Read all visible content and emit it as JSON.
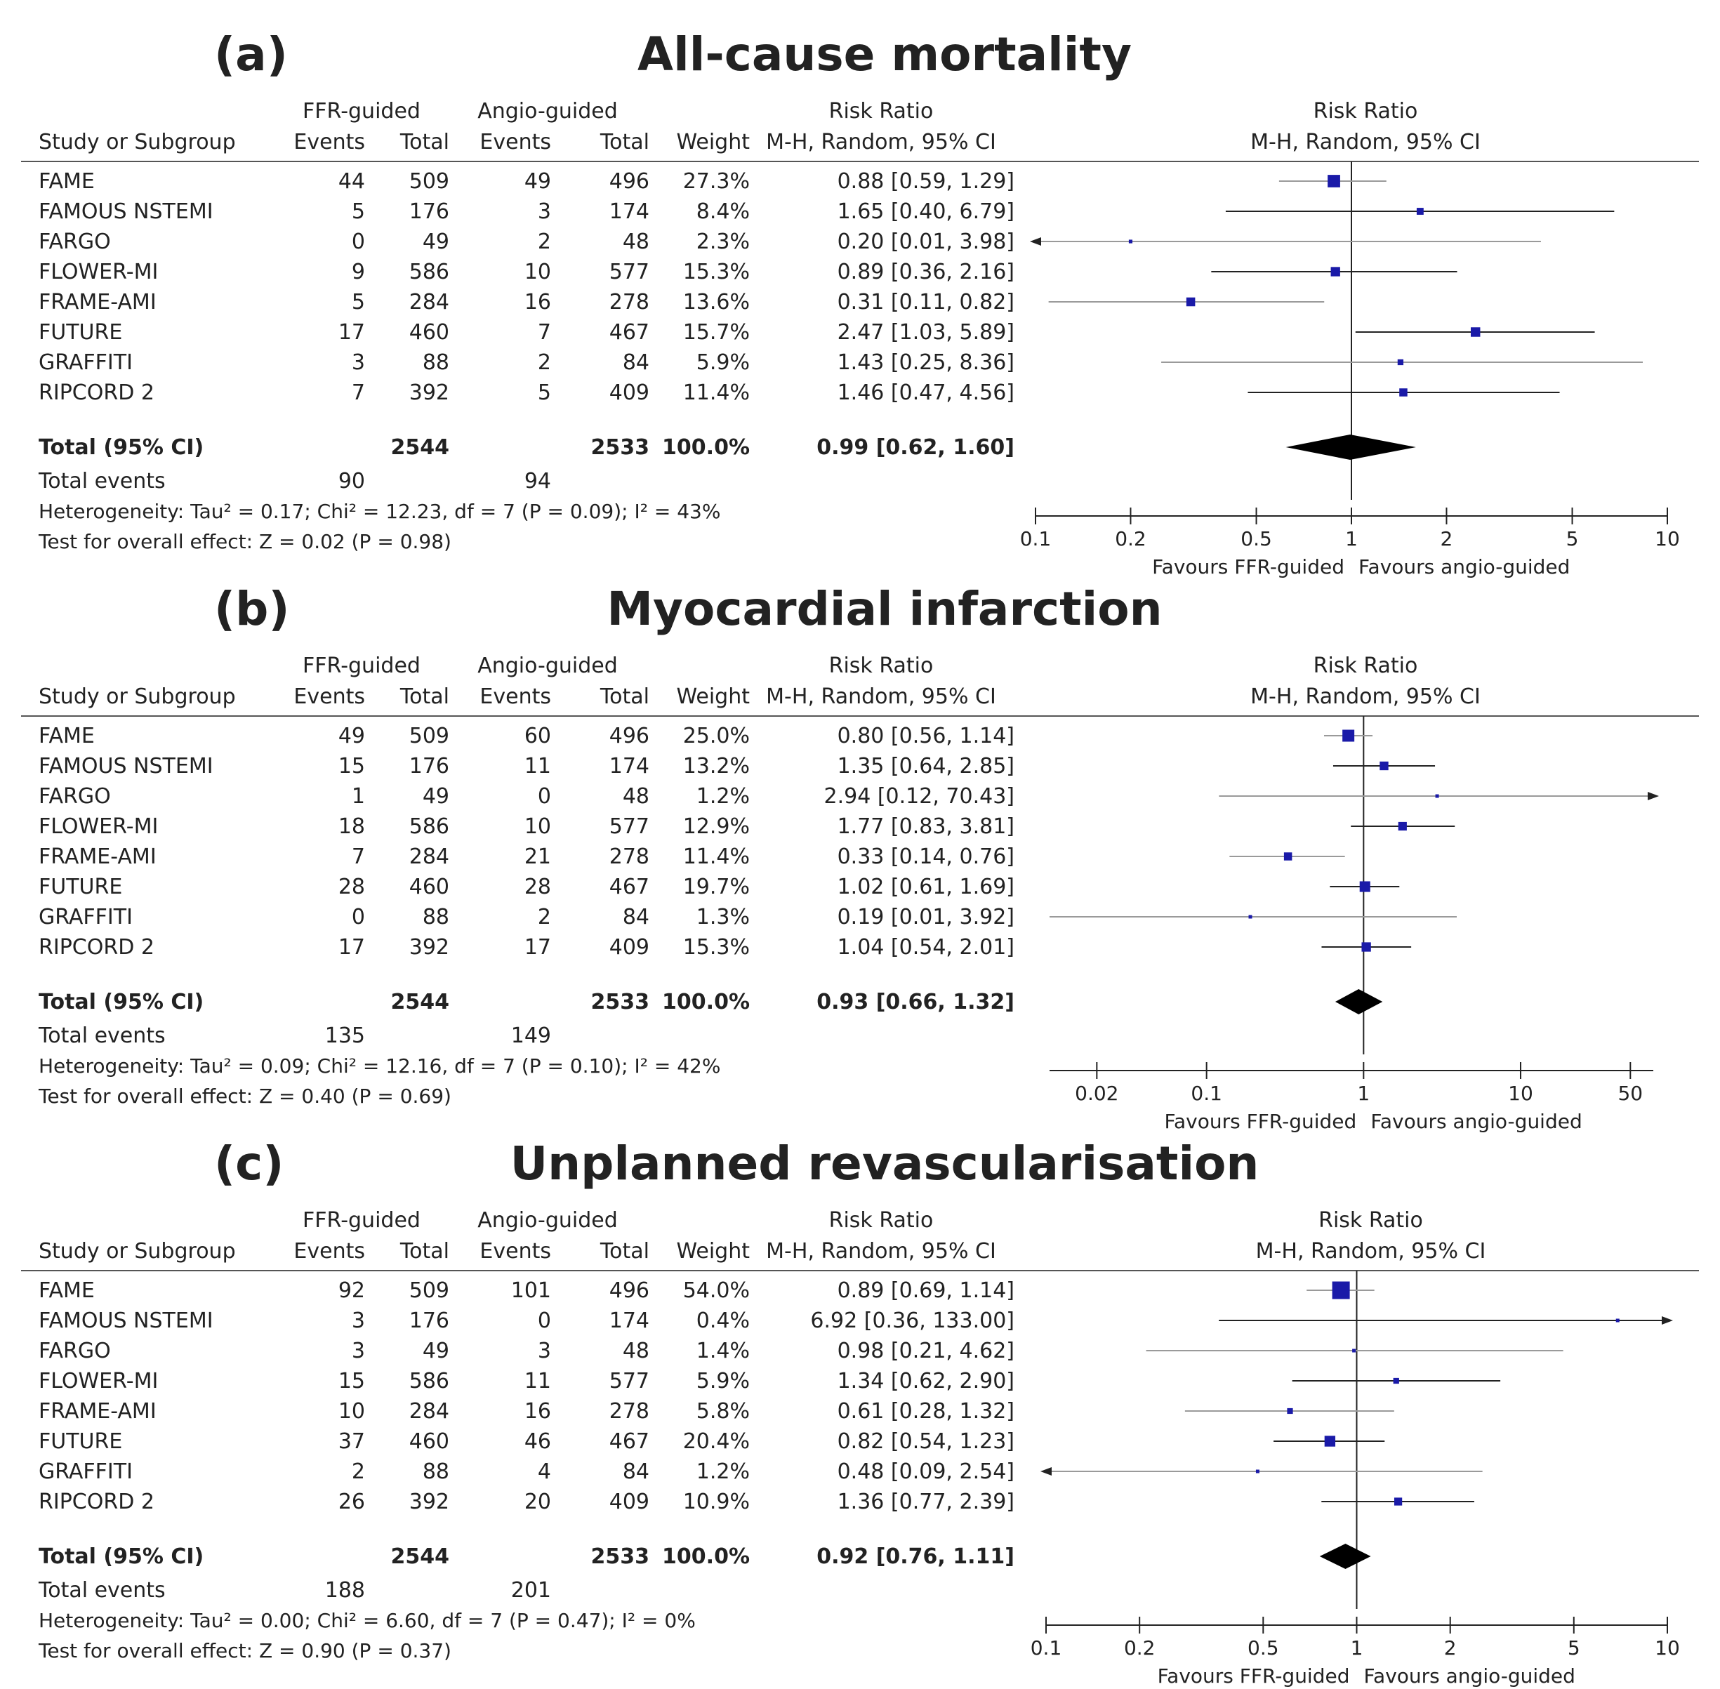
{
  "colors": {
    "text": "#222222",
    "marker": "#1a1aa8",
    "line_dark": "#222222",
    "line_light": "#9a9a9a",
    "rule": "#555555"
  },
  "headers": {
    "ffr_group": "FFR-guided",
    "angio_group": "Angio-guided",
    "study": "Study or Subgroup",
    "events": "Events",
    "total": "Total",
    "weight": "Weight",
    "rr_title": "Risk Ratio",
    "rr_method": "M-H, Random, 95% CI"
  },
  "chart_data": [
    {
      "type": "forest",
      "panel": "(a)",
      "title": "All-cause mortality",
      "rows": [
        {
          "study": "FAME",
          "ffr_events": "44",
          "ffr_total": "509",
          "angio_events": "49",
          "angio_total": "496",
          "weight": "27.3%",
          "ci_text": "0.88 [0.59, 1.29]",
          "rr": 0.88,
          "lo": 0.59,
          "hi": 1.29,
          "w": 27.3
        },
        {
          "study": "FAMOUS NSTEMI",
          "ffr_events": "5",
          "ffr_total": "176",
          "angio_events": "3",
          "angio_total": "174",
          "weight": "8.4%",
          "ci_text": "1.65 [0.40, 6.79]",
          "rr": 1.65,
          "lo": 0.4,
          "hi": 6.79,
          "w": 8.4
        },
        {
          "study": "FARGO",
          "ffr_events": "0",
          "ffr_total": "49",
          "angio_events": "2",
          "angio_total": "48",
          "weight": "2.3%",
          "ci_text": "0.20 [0.01, 3.98]",
          "rr": 0.2,
          "lo": 0.01,
          "hi": 3.98,
          "w": 2.3
        },
        {
          "study": "FLOWER-MI",
          "ffr_events": "9",
          "ffr_total": "586",
          "angio_events": "10",
          "angio_total": "577",
          "weight": "15.3%",
          "ci_text": "0.89 [0.36, 2.16]",
          "rr": 0.89,
          "lo": 0.36,
          "hi": 2.16,
          "w": 15.3
        },
        {
          "study": "FRAME-AMI",
          "ffr_events": "5",
          "ffr_total": "284",
          "angio_events": "16",
          "angio_total": "278",
          "weight": "13.6%",
          "ci_text": "0.31 [0.11, 0.82]",
          "rr": 0.31,
          "lo": 0.11,
          "hi": 0.82,
          "w": 13.6
        },
        {
          "study": "FUTURE",
          "ffr_events": "17",
          "ffr_total": "460",
          "angio_events": "7",
          "angio_total": "467",
          "weight": "15.7%",
          "ci_text": "2.47 [1.03, 5.89]",
          "rr": 2.47,
          "lo": 1.03,
          "hi": 5.89,
          "w": 15.7
        },
        {
          "study": "GRAFFITI",
          "ffr_events": "3",
          "ffr_total": "88",
          "angio_events": "2",
          "angio_total": "84",
          "weight": "5.9%",
          "ci_text": "1.43 [0.25, 8.36]",
          "rr": 1.43,
          "lo": 0.25,
          "hi": 8.36,
          "w": 5.9
        },
        {
          "study": "RIPCORD 2",
          "ffr_events": "7",
          "ffr_total": "392",
          "angio_events": "5",
          "angio_total": "409",
          "weight": "11.4%",
          "ci_text": "1.46 [0.47, 4.56]",
          "rr": 1.46,
          "lo": 0.47,
          "hi": 4.56,
          "w": 11.4
        }
      ],
      "total": {
        "label": "Total (95% CI)",
        "ffr_total": "2544",
        "angio_total": "2533",
        "weight": "100.0%",
        "ci_text": "0.99 [0.62, 1.60]",
        "rr": 0.99,
        "lo": 0.62,
        "hi": 1.6
      },
      "events": {
        "label": "Total events",
        "ffr": "90",
        "angio": "94"
      },
      "heterogeneity": "Heterogeneity: Tau² = 0.17; Chi² = 12.23, df = 7 (P = 0.09); I² = 43%",
      "overall": "Test for overall effect: Z = 0.02 (P = 0.98)",
      "axis": {
        "scale": "log",
        "min": 0.1,
        "max": 10,
        "ticks": [
          0.1,
          0.2,
          0.5,
          1,
          2,
          5,
          10
        ],
        "tick_labels": [
          "0.1",
          "0.2",
          "0.5",
          "1",
          "2",
          "5",
          "10"
        ]
      },
      "favours_left": "Favours FFR-guided",
      "favours_right": "Favours angio-guided"
    },
    {
      "type": "forest",
      "panel": "(b)",
      "title": "Myocardial infarction",
      "rows": [
        {
          "study": "FAME",
          "ffr_events": "49",
          "ffr_total": "509",
          "angio_events": "60",
          "angio_total": "496",
          "weight": "25.0%",
          "ci_text": "0.80 [0.56, 1.14]",
          "rr": 0.8,
          "lo": 0.56,
          "hi": 1.14,
          "w": 25.0
        },
        {
          "study": "FAMOUS NSTEMI",
          "ffr_events": "15",
          "ffr_total": "176",
          "angio_events": "11",
          "angio_total": "174",
          "weight": "13.2%",
          "ci_text": "1.35 [0.64, 2.85]",
          "rr": 1.35,
          "lo": 0.64,
          "hi": 2.85,
          "w": 13.2
        },
        {
          "study": "FARGO",
          "ffr_events": "1",
          "ffr_total": "49",
          "angio_events": "0",
          "angio_total": "48",
          "weight": "1.2%",
          "ci_text": "2.94 [0.12, 70.43]",
          "rr": 2.94,
          "lo": 0.12,
          "hi": 70.43,
          "w": 1.2
        },
        {
          "study": "FLOWER-MI",
          "ffr_events": "18",
          "ffr_total": "586",
          "angio_events": "10",
          "angio_total": "577",
          "weight": "12.9%",
          "ci_text": "1.77 [0.83, 3.81]",
          "rr": 1.77,
          "lo": 0.83,
          "hi": 3.81,
          "w": 12.9
        },
        {
          "study": "FRAME-AMI",
          "ffr_events": "7",
          "ffr_total": "284",
          "angio_events": "21",
          "angio_total": "278",
          "weight": "11.4%",
          "ci_text": "0.33 [0.14, 0.76]",
          "rr": 0.33,
          "lo": 0.14,
          "hi": 0.76,
          "w": 11.4
        },
        {
          "study": "FUTURE",
          "ffr_events": "28",
          "ffr_total": "460",
          "angio_events": "28",
          "angio_total": "467",
          "weight": "19.7%",
          "ci_text": "1.02 [0.61, 1.69]",
          "rr": 1.02,
          "lo": 0.61,
          "hi": 1.69,
          "w": 19.7
        },
        {
          "study": "GRAFFITI",
          "ffr_events": "0",
          "ffr_total": "88",
          "angio_events": "2",
          "angio_total": "84",
          "weight": "1.3%",
          "ci_text": "0.19 [0.01, 3.92]",
          "rr": 0.19,
          "lo": 0.01,
          "hi": 3.92,
          "w": 1.3
        },
        {
          "study": "RIPCORD 2",
          "ffr_events": "17",
          "ffr_total": "392",
          "angio_events": "17",
          "angio_total": "409",
          "weight": "15.3%",
          "ci_text": "1.04 [0.54, 2.01]",
          "rr": 1.04,
          "lo": 0.54,
          "hi": 2.01,
          "w": 15.3
        }
      ],
      "total": {
        "label": "Total (95% CI)",
        "ffr_total": "2544",
        "angio_total": "2533",
        "weight": "100.0%",
        "ci_text": "0.93 [0.66, 1.32]",
        "rr": 0.93,
        "lo": 0.66,
        "hi": 1.32
      },
      "events": {
        "label": "Total events",
        "ffr": "135",
        "angio": "149"
      },
      "heterogeneity": "Heterogeneity: Tau² = 0.09; Chi² = 12.16, df = 7 (P = 0.10); I² = 42%",
      "overall": "Test for overall effect: Z = 0.40 (P = 0.69)",
      "axis": {
        "scale": "log",
        "min": 0.01,
        "max": 70,
        "ticks": [
          0.02,
          0.1,
          1,
          10,
          50
        ],
        "tick_labels": [
          "0.02",
          "0.1",
          "1",
          "10",
          "50"
        ]
      },
      "favours_left": "Favours FFR-guided",
      "favours_right": "Favours angio-guided"
    },
    {
      "type": "forest",
      "panel": "(c)",
      "title": "Unplanned revascularisation",
      "rows": [
        {
          "study": "FAME",
          "ffr_events": "92",
          "ffr_total": "509",
          "angio_events": "101",
          "angio_total": "496",
          "weight": "54.0%",
          "ci_text": "0.89 [0.69, 1.14]",
          "rr": 0.89,
          "lo": 0.69,
          "hi": 1.14,
          "w": 54.0
        },
        {
          "study": "FAMOUS NSTEMI",
          "ffr_events": "3",
          "ffr_total": "176",
          "angio_events": "0",
          "angio_total": "174",
          "weight": "0.4%",
          "ci_text": "6.92 [0.36, 133.00]",
          "rr": 6.92,
          "lo": 0.36,
          "hi": 133.0,
          "w": 0.4
        },
        {
          "study": "FARGO",
          "ffr_events": "3",
          "ffr_total": "49",
          "angio_events": "3",
          "angio_total": "48",
          "weight": "1.4%",
          "ci_text": "0.98 [0.21, 4.62]",
          "rr": 0.98,
          "lo": 0.21,
          "hi": 4.62,
          "w": 1.4
        },
        {
          "study": "FLOWER-MI",
          "ffr_events": "15",
          "ffr_total": "586",
          "angio_events": "11",
          "angio_total": "577",
          "weight": "5.9%",
          "ci_text": "1.34 [0.62, 2.90]",
          "rr": 1.34,
          "lo": 0.62,
          "hi": 2.9,
          "w": 5.9
        },
        {
          "study": "FRAME-AMI",
          "ffr_events": "10",
          "ffr_total": "284",
          "angio_events": "16",
          "angio_total": "278",
          "weight": "5.8%",
          "ci_text": "0.61 [0.28, 1.32]",
          "rr": 0.61,
          "lo": 0.28,
          "hi": 1.32,
          "w": 5.8
        },
        {
          "study": "FUTURE",
          "ffr_events": "37",
          "ffr_total": "460",
          "angio_events": "46",
          "angio_total": "467",
          "weight": "20.4%",
          "ci_text": "0.82 [0.54, 1.23]",
          "rr": 0.82,
          "lo": 0.54,
          "hi": 1.23,
          "w": 20.4
        },
        {
          "study": "GRAFFITI",
          "ffr_events": "2",
          "ffr_total": "88",
          "angio_events": "4",
          "angio_total": "84",
          "weight": "1.2%",
          "ci_text": "0.48 [0.09, 2.54]",
          "rr": 0.48,
          "lo": 0.09,
          "hi": 2.54,
          "w": 1.2
        },
        {
          "study": "RIPCORD 2",
          "ffr_events": "26",
          "ffr_total": "392",
          "angio_events": "20",
          "angio_total": "409",
          "weight": "10.9%",
          "ci_text": "1.36 [0.77, 2.39]",
          "rr": 1.36,
          "lo": 0.77,
          "hi": 2.39,
          "w": 10.9
        }
      ],
      "total": {
        "label": "Total (95% CI)",
        "ffr_total": "2544",
        "angio_total": "2533",
        "weight": "100.0%",
        "ci_text": "0.92 [0.76, 1.11]",
        "rr": 0.92,
        "lo": 0.76,
        "hi": 1.11
      },
      "events": {
        "label": "Total events",
        "ffr": "188",
        "angio": "201"
      },
      "heterogeneity": "Heterogeneity: Tau² = 0.00; Chi² = 6.60, df = 7 (P = 0.47); I² = 0%",
      "overall": "Test for overall effect: Z = 0.90 (P = 0.37)",
      "axis": {
        "scale": "log",
        "min": 0.1,
        "max": 10,
        "ticks": [
          0.1,
          0.2,
          0.5,
          1,
          2,
          5,
          10
        ],
        "tick_labels": [
          "0.1",
          "0.2",
          "0.5",
          "1",
          "2",
          "5",
          "10"
        ]
      },
      "favours_left": "Favours FFR-guided",
      "favours_right": "Favours angio-guided"
    }
  ]
}
